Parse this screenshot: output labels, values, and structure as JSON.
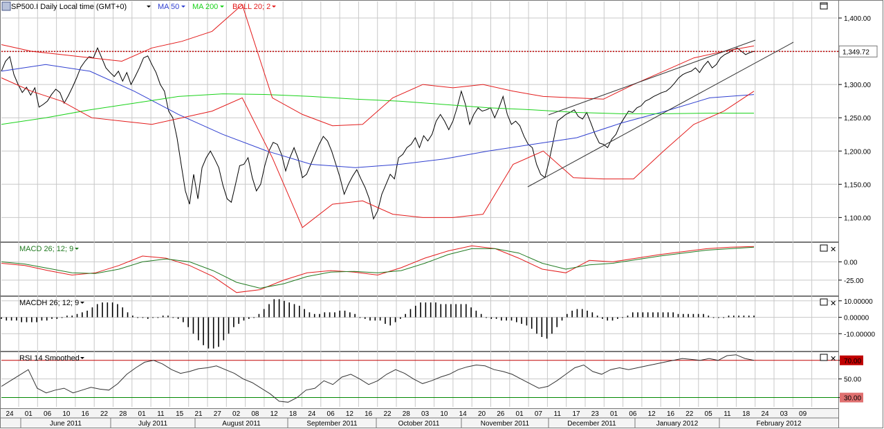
{
  "colors": {
    "price": "#000000",
    "ma50": "#2f3fd0",
    "ma200": "#19d219",
    "boll": "#e31a1a",
    "macd_line": "#e31a1a",
    "macd_signal": "#207a20",
    "rsi_upper": "#c00000",
    "rsi_lower": "#008800",
    "grid": "#c8c8c8"
  },
  "icons": [
    "chart-app-icon",
    "dropdown-arrow-icon",
    "maximize-icon",
    "close-icon"
  ],
  "header": {
    "symbol_label": "SP500.I Daily Local time (GMT+0)",
    "ma50_label": "MA 50",
    "ma200_label": "MA 200",
    "boll_label": "BOLL 20; 2"
  },
  "panels": {
    "macd_label": "MACD 26; 12; 9",
    "macdh_label": "MACDH 26; 12; 9",
    "rsi_label": "RSI 14 Smoothed"
  },
  "chart_data": [
    {
      "type": "line",
      "panel": "price",
      "y_ticks": [
        "1,400.00",
        "1,350.00",
        "1,300.00",
        "1,250.00",
        "1,200.00",
        "1,150.00",
        "1,100.00"
      ],
      "ylim": [
        1065,
        1425
      ],
      "last_price": 1349.72,
      "last_price_label": "1,349.72",
      "date_ticks": [
        "24",
        "01",
        "06",
        "10",
        "16",
        "22",
        "28",
        "01",
        "11",
        "15",
        "21",
        "27",
        "02",
        "08",
        "12",
        "18",
        "24",
        "06",
        "12",
        "16",
        "22",
        "28",
        "03",
        "10",
        "14",
        "20",
        "26",
        "01",
        "07",
        "11",
        "17",
        "23",
        "01",
        "06",
        "12",
        "16",
        "22",
        "05",
        "11",
        "18",
        "24",
        "03",
        "09"
      ],
      "months": [
        "June 2011",
        "July 2011",
        "August 2011",
        "September 2011",
        "October 2011",
        "November 2011",
        "December 2011",
        "January 2012",
        "February 2012"
      ],
      "x_range": [
        "2011-05-24",
        "2012-02-09"
      ],
      "series": [
        {
          "key": "price",
          "values": [
            1320,
            1335,
            1342,
            1315,
            1300,
            1288,
            1296,
            1284,
            1295,
            1266,
            1270,
            1275,
            1285,
            1293,
            1288,
            1272,
            1283,
            1296,
            1310,
            1326,
            1335,
            1342,
            1340,
            1355,
            1340,
            1325,
            1318,
            1312,
            1320,
            1305,
            1318,
            1300,
            1312,
            1325,
            1340,
            1343,
            1330,
            1318,
            1300,
            1290,
            1260,
            1250,
            1220,
            1180,
            1140,
            1120,
            1165,
            1128,
            1175,
            1190,
            1200,
            1188,
            1175,
            1148,
            1128,
            1123,
            1150,
            1178,
            1180,
            1190,
            1160,
            1140,
            1150,
            1178,
            1200,
            1213,
            1210,
            1195,
            1170,
            1190,
            1205,
            1188,
            1160,
            1165,
            1180,
            1195,
            1210,
            1222,
            1215,
            1200,
            1180,
            1160,
            1135,
            1150,
            1162,
            1172,
            1158,
            1145,
            1128,
            1098,
            1110,
            1135,
            1150,
            1165,
            1158,
            1190,
            1195,
            1205,
            1210,
            1220,
            1205,
            1223,
            1215,
            1225,
            1245,
            1255,
            1245,
            1232,
            1245,
            1265,
            1290,
            1270,
            1240,
            1255,
            1265,
            1260,
            1262,
            1265,
            1250,
            1265,
            1282,
            1255,
            1240,
            1245,
            1238,
            1222,
            1210,
            1205,
            1180,
            1165,
            1160,
            1185,
            1215,
            1245,
            1250,
            1255,
            1258,
            1262,
            1252,
            1248,
            1258,
            1242,
            1225,
            1212,
            1210,
            1205,
            1218,
            1225,
            1240,
            1250,
            1260,
            1258,
            1265,
            1268,
            1275,
            1278,
            1282,
            1285,
            1288,
            1290,
            1295,
            1302,
            1310,
            1315,
            1318,
            1320,
            1325,
            1318,
            1328,
            1335,
            1325,
            1330,
            1340,
            1345,
            1348,
            1352,
            1355,
            1350,
            1345,
            1348,
            1350
          ]
        },
        {
          "key": "ma50",
          "values": [
            1320,
            1330,
            1320,
            1290,
            1255,
            1225,
            1200,
            1180,
            1175,
            1180,
            1188,
            1200,
            1210,
            1220,
            1242,
            1260,
            1280,
            1285
          ]
        },
        {
          "key": "ma200",
          "values": [
            1240,
            1250,
            1262,
            1272,
            1282,
            1286,
            1285,
            1282,
            1278,
            1275,
            1270,
            1265,
            1262,
            1258,
            1256,
            1256,
            1257,
            1257
          ]
        },
        {
          "key": "boll_upper",
          "values": [
            1360,
            1350,
            1345,
            1340,
            1335,
            1355,
            1365,
            1380,
            1420,
            1280,
            1255,
            1238,
            1240,
            1280,
            1300,
            1295,
            1300,
            1290,
            1282,
            1280,
            1278,
            1300,
            1320,
            1340,
            1350,
            1358
          ]
        },
        {
          "key": "boll_lower",
          "values": [
            1310,
            1290,
            1275,
            1250,
            1245,
            1240,
            1250,
            1260,
            1280,
            1190,
            1085,
            1120,
            1125,
            1105,
            1100,
            1100,
            1105,
            1180,
            1200,
            1160,
            1158,
            1158,
            1200,
            1240,
            1260,
            1290
          ]
        }
      ]
    },
    {
      "type": "line",
      "panel": "macd",
      "y_ticks": [
        "0.00",
        "-25.00"
      ],
      "ylim": [
        -45,
        25
      ],
      "series": [
        {
          "key": "macd_line",
          "values": [
            -2,
            -5,
            -12,
            -18,
            -15,
            -5,
            8,
            5,
            -5,
            -20,
            -42,
            -38,
            -25,
            -15,
            -12,
            -14,
            -18,
            -8,
            5,
            15,
            22,
            18,
            5,
            -10,
            -15,
            2,
            0,
            5,
            10,
            14,
            18,
            20,
            21
          ]
        },
        {
          "key": "macd_signal",
          "values": [
            0,
            -3,
            -9,
            -15,
            -16,
            -10,
            0,
            4,
            0,
            -12,
            -28,
            -36,
            -30,
            -20,
            -14,
            -13,
            -15,
            -12,
            -2,
            10,
            18,
            18,
            12,
            -2,
            -10,
            -4,
            -2,
            3,
            8,
            12,
            16,
            18,
            20
          ]
        }
      ]
    },
    {
      "type": "bar",
      "panel": "macdh",
      "y_ticks": [
        "10.00000",
        "0.00000",
        "-10.00000"
      ],
      "ylim": [
        -20,
        12
      ],
      "values": [
        -1,
        -2,
        -2,
        -2,
        -3,
        -3,
        -3,
        -3,
        -2,
        -2,
        -1,
        -1,
        0,
        1,
        1,
        2,
        3,
        4,
        6,
        8,
        9,
        9,
        9,
        8,
        6,
        3,
        1,
        0,
        0,
        -1,
        0,
        0,
        1,
        1,
        0,
        -1,
        -3,
        -6,
        -10,
        -14,
        -17,
        -19,
        -19,
        -18,
        -14,
        -10,
        -6,
        -4,
        -2,
        -1,
        0,
        2,
        5,
        8,
        11,
        11,
        10,
        9,
        8,
        7,
        5,
        3,
        2,
        2,
        3,
        3,
        3,
        4,
        4,
        3,
        2,
        0,
        -1,
        -2,
        -2,
        -2,
        -4,
        -5,
        -3,
        -1,
        2,
        5,
        7,
        9,
        9,
        9,
        9,
        8,
        8,
        8,
        8,
        8,
        8,
        6,
        4,
        2,
        0,
        -1,
        -1,
        -2,
        -2,
        -2,
        -3,
        -4,
        -5,
        -7,
        -10,
        -12,
        -13,
        -10,
        -6,
        -2,
        2,
        4,
        5,
        5,
        4,
        3,
        1,
        -1,
        -2,
        -2,
        -1,
        0,
        1,
        3,
        3,
        3,
        3,
        3,
        3,
        3,
        3,
        3,
        2,
        2,
        2,
        2,
        2,
        2,
        1,
        0,
        0,
        0,
        1,
        1,
        1,
        1,
        1,
        1
      ]
    },
    {
      "type": "line",
      "panel": "rsi",
      "y_ticks": [
        "50.00",
        "70.00",
        "30.00"
      ],
      "ylim": [
        20,
        78
      ],
      "levels": [
        70,
        30
      ],
      "series": [
        {
          "key": "rsi",
          "values": [
            42,
            48,
            54,
            60,
            40,
            35,
            38,
            40,
            35,
            38,
            41,
            39,
            38,
            45,
            55,
            62,
            68,
            70,
            66,
            60,
            56,
            58,
            61,
            62,
            64,
            60,
            56,
            50,
            46,
            40,
            34,
            26,
            25,
            30,
            38,
            40,
            48,
            44,
            52,
            55,
            50,
            44,
            48,
            55,
            60,
            56,
            50,
            45,
            48,
            52,
            55,
            60,
            63,
            65,
            64,
            60,
            58,
            55,
            50,
            45,
            40,
            42,
            48,
            55,
            62,
            65,
            58,
            55,
            60,
            62,
            60,
            62,
            64,
            66,
            68,
            70,
            72,
            71,
            70,
            72,
            70,
            75,
            76,
            72,
            70
          ]
        }
      ]
    }
  ]
}
